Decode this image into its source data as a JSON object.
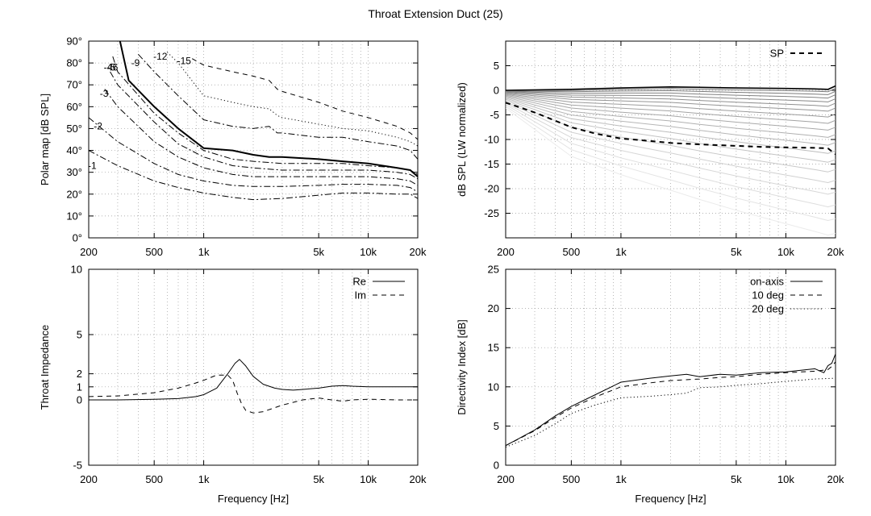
{
  "title": "Throat Extension Duct (25)",
  "chart_data": [
    {
      "type": "line",
      "title": "Polar map",
      "xlabel": "",
      "ylabel": "Polar map [dB SPL]",
      "x_scale": "log",
      "xlim": [
        200,
        20000
      ],
      "ylim": [
        0,
        90
      ],
      "x_ticks": [
        "200",
        "500",
        "1k",
        "5k",
        "10k",
        "20k"
      ],
      "y_ticks": [
        "0°",
        "10°",
        "20°",
        "30°",
        "40°",
        "50°",
        "60°",
        "70°",
        "80°",
        "90°"
      ],
      "contour_labels": [
        "-1",
        "-2",
        "-3",
        "-4",
        "-5",
        "6",
        "-9",
        "-12",
        "-15"
      ],
      "series": [
        {
          "name": "-1",
          "style": "dashdot",
          "width": 1,
          "x": [
            200,
            300,
            500,
            700,
            1000,
            1500,
            2000,
            3000,
            5000,
            7000,
            10000,
            15000,
            18000,
            20000
          ],
          "y": [
            40,
            33,
            26,
            23,
            20.5,
            18.5,
            17.5,
            18,
            19.5,
            20.5,
            20.5,
            20,
            20,
            18
          ]
        },
        {
          "name": "-2",
          "style": "dashdot",
          "width": 1,
          "x": [
            200,
            300,
            500,
            700,
            1000,
            1500,
            2000,
            3000,
            5000,
            7000,
            10000,
            15000,
            18000,
            20000
          ],
          "y": [
            55,
            44,
            34,
            29,
            26,
            24,
            23.5,
            23.5,
            24,
            24.5,
            24.5,
            24,
            23,
            21
          ]
        },
        {
          "name": "-3",
          "style": "dashdot",
          "width": 1,
          "x": [
            250,
            300,
            500,
            700,
            1000,
            1500,
            2000,
            3000,
            5000,
            7000,
            10000,
            15000,
            18000,
            20000
          ],
          "y": [
            68,
            60,
            44,
            37,
            32,
            29,
            28,
            28,
            28,
            28,
            28,
            27,
            26,
            24
          ]
        },
        {
          "name": "-4",
          "style": "dashdot",
          "width": 1,
          "x": [
            270,
            300,
            500,
            700,
            1000,
            1500,
            2000,
            3000,
            5000,
            7000,
            10000,
            15000,
            18000,
            20000
          ],
          "y": [
            76,
            70,
            53,
            43,
            37,
            33,
            32,
            31,
            31,
            31,
            31,
            30,
            29,
            27
          ]
        },
        {
          "name": "-5",
          "style": "dashdot",
          "width": 1,
          "x": [
            280,
            300,
            500,
            700,
            1000,
            1500,
            2000,
            3000,
            5000,
            7000,
            10000,
            15000,
            18000,
            20000
          ],
          "y": [
            83,
            76,
            57,
            48,
            40,
            36,
            35,
            34,
            34,
            34,
            33,
            32,
            31,
            29
          ]
        },
        {
          "name": "6",
          "style": "solid",
          "width": 2,
          "x": [
            310,
            350,
            500,
            700,
            1000,
            1500,
            2000,
            2500,
            3000,
            5000,
            7000,
            10000,
            15000,
            18000,
            20000
          ],
          "y": [
            90,
            72,
            60,
            50,
            41,
            40,
            38,
            37,
            37,
            36,
            35,
            34,
            32,
            31,
            28
          ]
        },
        {
          "name": "-9",
          "style": "dashdot",
          "width": 1,
          "x": [
            400,
            500,
            700,
            1000,
            1500,
            2000,
            2500,
            2800,
            3000,
            5000,
            7000,
            10000,
            15000,
            18000,
            20000
          ],
          "y": [
            84,
            76,
            65,
            54,
            51,
            50,
            51,
            48,
            48,
            46,
            46,
            44,
            42,
            40,
            36
          ]
        },
        {
          "name": "-12",
          "style": "dotted",
          "width": 1,
          "x": [
            600,
            700,
            1000,
            1500,
            2000,
            2500,
            2800,
            3000,
            5000,
            7000,
            10000,
            15000,
            18000,
            20000
          ],
          "y": [
            85,
            80,
            65,
            62,
            60,
            59,
            56,
            55,
            52,
            50,
            49,
            46,
            44,
            42
          ]
        },
        {
          "name": "-15",
          "style": "dashed",
          "width": 1,
          "x": [
            850,
            1000,
            1500,
            2000,
            2500,
            2800,
            3000,
            5000,
            7000,
            10000,
            15000,
            18000,
            20000
          ],
          "y": [
            82,
            79,
            76,
            74,
            72,
            68,
            67,
            62,
            58,
            55,
            51,
            48,
            45
          ]
        }
      ]
    },
    {
      "type": "line",
      "title": "",
      "xlabel": "",
      "ylabel": "dB SPL (LW normalized)",
      "x_scale": "log",
      "xlim": [
        200,
        20000
      ],
      "ylim": [
        -30,
        10
      ],
      "x_ticks": [
        "200",
        "500",
        "1k",
        "5k",
        "10k",
        "20k"
      ],
      "y_ticks": [
        "-25",
        "-20",
        "-15",
        "-10",
        "-5",
        "0",
        "5"
      ],
      "legend": "top-right",
      "series": [
        {
          "name": "SP",
          "style": "dashed",
          "width": 2,
          "x": [
            200,
            300,
            500,
            700,
            1000,
            1500,
            2000,
            3000,
            5000,
            7000,
            10000,
            15000,
            18000,
            20000
          ],
          "y": [
            -2.5,
            -4.5,
            -7.5,
            -8.8,
            -9.8,
            -10.3,
            -10.7,
            -11,
            -11.3,
            -11.5,
            -11.6,
            -11.7,
            -11.8,
            -13
          ]
        },
        {
          "style": "solid",
          "width": 1.5,
          "x": [
            200,
            500,
            1000,
            2000,
            3000,
            5000,
            10000,
            15000,
            18000,
            20000
          ],
          "y": [
            0,
            0.2,
            0.5,
            0.7,
            0.6,
            0.5,
            0.4,
            0.3,
            0.2,
            0.9
          ]
        }
      ],
      "fan_offsets_db": [
        -0.1,
        -0.5,
        -1.1,
        -1.8,
        -2.6,
        -3.5,
        -4.5,
        -5.7,
        -7.0,
        -8.4,
        -9.9,
        -11.5,
        -13.2,
        -15.0,
        -17.0,
        -19.2,
        -21.6,
        -24.2,
        -27.0,
        -30.0
      ]
    },
    {
      "type": "line",
      "title": "",
      "xlabel": "Frequency [Hz]",
      "ylabel": "Throat Impedance",
      "x_scale": "log",
      "xlim": [
        200,
        20000
      ],
      "ylim": [
        -5,
        10
      ],
      "x_ticks": [
        "200",
        "500",
        "1k",
        "5k",
        "10k",
        "20k"
      ],
      "y_ticks": [
        "-5",
        "0",
        "1",
        "2",
        "5",
        "10"
      ],
      "legend": "top-right",
      "series": [
        {
          "name": "Re",
          "style": "solid",
          "width": 1,
          "x": [
            200,
            300,
            500,
            700,
            900,
            1000,
            1200,
            1400,
            1550,
            1650,
            1800,
            2000,
            2300,
            2700,
            3000,
            3500,
            4000,
            5000,
            6000,
            7000,
            8000,
            10000,
            15000,
            20000
          ],
          "y": [
            0,
            0,
            0.05,
            0.1,
            0.25,
            0.4,
            0.9,
            2,
            2.8,
            3.1,
            2.6,
            1.8,
            1.2,
            0.9,
            0.8,
            0.75,
            0.8,
            0.9,
            1.05,
            1.1,
            1.05,
            1,
            1,
            1
          ]
        },
        {
          "name": "Im",
          "style": "dashed",
          "width": 1,
          "x": [
            200,
            300,
            500,
            700,
            900,
            1000,
            1200,
            1400,
            1500,
            1600,
            1700,
            1800,
            2000,
            2300,
            2700,
            3000,
            4000,
            5000,
            6000,
            7000,
            8000,
            10000,
            15000,
            20000
          ],
          "y": [
            0.25,
            0.3,
            0.55,
            0.9,
            1.3,
            1.5,
            1.9,
            1.9,
            1.5,
            0.5,
            -0.3,
            -0.8,
            -1,
            -0.9,
            -0.6,
            -0.4,
            0,
            0.15,
            0,
            -0.1,
            0,
            0.05,
            0,
            0
          ]
        }
      ]
    },
    {
      "type": "line",
      "title": "",
      "xlabel": "Frequency [Hz]",
      "ylabel": "Directivity Index [dB]",
      "x_scale": "log",
      "xlim": [
        200,
        20000
      ],
      "ylim": [
        0,
        25
      ],
      "x_ticks": [
        "200",
        "500",
        "1k",
        "5k",
        "10k",
        "20k"
      ],
      "y_ticks": [
        "0",
        "5",
        "10",
        "15",
        "20",
        "25"
      ],
      "legend": "top-right",
      "series": [
        {
          "name": "on-axis",
          "style": "solid",
          "width": 1,
          "x": [
            200,
            300,
            400,
            500,
            700,
            1000,
            1500,
            2000,
            2500,
            3000,
            4000,
            5000,
            7000,
            10000,
            15000,
            17000,
            18000,
            19000,
            20000
          ],
          "y": [
            2.5,
            4.5,
            6.3,
            7.5,
            9,
            10.6,
            11.1,
            11.4,
            11.6,
            11.3,
            11.6,
            11.5,
            11.8,
            11.9,
            12.3,
            11.8,
            12.7,
            13,
            14.2
          ]
        },
        {
          "name": "10 deg",
          "style": "dashed",
          "width": 1,
          "x": [
            200,
            300,
            400,
            500,
            700,
            1000,
            1500,
            2000,
            3000,
            4000,
            5000,
            7000,
            10000,
            15000,
            18000,
            19000,
            20000
          ],
          "y": [
            2.5,
            4.4,
            6.1,
            7.3,
            8.7,
            10,
            10.5,
            10.8,
            11,
            11.2,
            11.3,
            11.6,
            11.8,
            12,
            12.2,
            12.6,
            13.2
          ]
        },
        {
          "name": "20 deg",
          "style": "dotted",
          "width": 1,
          "x": [
            200,
            300,
            400,
            500,
            700,
            1000,
            1500,
            2000,
            2500,
            3000,
            4000,
            5000,
            7000,
            10000,
            15000,
            20000
          ],
          "y": [
            2.3,
            3.8,
            5.3,
            6.6,
            7.7,
            8.6,
            8.8,
            9,
            9.2,
            9.9,
            10,
            10.2,
            10.4,
            10.7,
            11,
            11.1
          ]
        }
      ]
    }
  ]
}
